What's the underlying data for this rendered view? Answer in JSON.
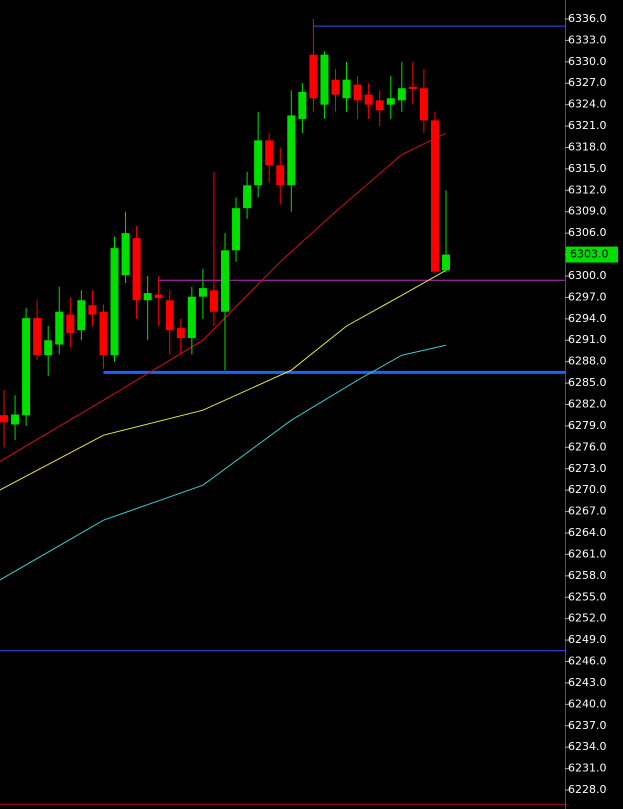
{
  "chart_data": {
    "type": "candlestick",
    "ylim": [
      6225.34,
      6338.66
    ],
    "yticks": [
      {
        "value": 6228,
        "label": "6228.0"
      },
      {
        "value": 6231,
        "label": "6231.0"
      },
      {
        "value": 6234,
        "label": "6234.0"
      },
      {
        "value": 6237,
        "label": "6237.0"
      },
      {
        "value": 6240,
        "label": "6240.0"
      },
      {
        "value": 6243,
        "label": "6243.0"
      },
      {
        "value": 6246,
        "label": "6246.0"
      },
      {
        "value": 6249,
        "label": "6249.0"
      },
      {
        "value": 6252,
        "label": "6252.0"
      },
      {
        "value": 6255,
        "label": "6255.0"
      },
      {
        "value": 6258,
        "label": "6258.0"
      },
      {
        "value": 6261,
        "label": "6261.0"
      },
      {
        "value": 6264,
        "label": "6264.0"
      },
      {
        "value": 6267,
        "label": "6267.0"
      },
      {
        "value": 6270,
        "label": "6270.0"
      },
      {
        "value": 6273,
        "label": "6273.0"
      },
      {
        "value": 6276,
        "label": "6276.0"
      },
      {
        "value": 6279,
        "label": "6279.0"
      },
      {
        "value": 6282,
        "label": "6282.0"
      },
      {
        "value": 6285,
        "label": "6285.0"
      },
      {
        "value": 6288,
        "label": "6288.0"
      },
      {
        "value": 6291,
        "label": "6291.0"
      },
      {
        "value": 6294,
        "label": "6294.0"
      },
      {
        "value": 6297,
        "label": "6297.0"
      },
      {
        "value": 6300,
        "label": "6300.0"
      },
      {
        "value": 6303,
        "label": "6303.0"
      },
      {
        "value": 6306,
        "label": "6306.0"
      },
      {
        "value": 6309,
        "label": "6309.0"
      },
      {
        "value": 6312,
        "label": "6312.0"
      },
      {
        "value": 6315,
        "label": "6315.0"
      },
      {
        "value": 6318,
        "label": "6318.0"
      },
      {
        "value": 6321,
        "label": "6321.0"
      },
      {
        "value": 6324,
        "label": "6324.0"
      },
      {
        "value": 6327,
        "label": "6327.0"
      },
      {
        "value": 6330,
        "label": "6330.0"
      },
      {
        "value": 6333,
        "label": "6333.0"
      },
      {
        "value": 6336,
        "label": "6336.0"
      }
    ],
    "up_color": "#00e000",
    "down_color": "#ff0000",
    "open": [
      6280.5,
      6279.2,
      6280.5,
      6294.1,
      6288.9,
      6290.4,
      6294.6,
      6292.4,
      6295.9,
      6295,
      6288.9,
      6300.1,
      6305.3,
      6296.6,
      6297.4,
      6296.6,
      6292.7,
      6291.3,
      6297.1,
      6298,
      6295,
      6303.6,
      6309.5,
      6312.7,
      6319,
      6315.5,
      6312.7,
      6322,
      6331,
      6324,
      6327.5,
      6324.9,
      6326.8,
      6325.4,
      6324.6,
      6324,
      6324.6,
      6326.5,
      6326.3,
      6321.8,
      6300.8
    ],
    "high": [
      6284,
      6283.3,
      6295.5,
      6296.6,
      6293,
      6298.5,
      6297,
      6298,
      6298,
      6296,
      6305.5,
      6309,
      6307,
      6300,
      6300,
      6298,
      6294,
      6298.5,
      6301,
      6314.6,
      6306,
      6311,
      6314.6,
      6323,
      6320,
      6318,
      6326,
      6327,
      6336,
      6331.5,
      6329,
      6330,
      6328,
      6327,
      6326,
      6328,
      6330,
      6330,
      6329,
      6323,
      6312
    ],
    "low": [
      6276,
      6277,
      6279,
      6288.2,
      6286,
      6289,
      6290,
      6291,
      6293,
      6287,
      6288,
      6299,
      6294,
      6291,
      6293,
      6289,
      6289,
      6289,
      6294,
      6293,
      6286.8,
      6302,
      6308,
      6311,
      6313,
      6310,
      6309,
      6320,
      6323,
      6322,
      6323,
      6323,
      6322,
      6322,
      6321,
      6322,
      6323,
      6324,
      6320,
      6300.3,
      6300.5
    ],
    "close": [
      6279.5,
      6280.6,
      6294.1,
      6288.9,
      6291,
      6295,
      6292,
      6296.6,
      6294.6,
      6288.9,
      6303.9,
      6306,
      6296.6,
      6297.6,
      6296.9,
      6292.4,
      6291.3,
      6297.1,
      6298.3,
      6295,
      6303.6,
      6309.5,
      6312.7,
      6319,
      6315.5,
      6312.7,
      6322.5,
      6325.8,
      6324.9,
      6331,
      6325.4,
      6327.5,
      6324.6,
      6324,
      6323.2,
      6324.9,
      6326.3,
      6326.2,
      6321.8,
      6300.6,
      6303
    ],
    "series": [
      {
        "name": "ma-red",
        "color": "#d01010",
        "x": [
          -0.4,
          9,
          18,
          25,
          30,
          36,
          40
        ],
        "values": [
          6274,
          6282.6,
          6291,
          6302,
          6309,
          6317,
          6320
        ]
      },
      {
        "name": "ma-yellow",
        "color": "#e8e840",
        "x": [
          -0.4,
          9,
          18,
          26,
          31,
          36,
          40
        ],
        "values": [
          6270,
          6277.7,
          6281.2,
          6286.8,
          6293,
          6297.3,
          6300.8
        ]
      },
      {
        "name": "ma-cyan",
        "color": "#40c8c8",
        "x": [
          -0.4,
          9,
          18,
          26,
          32,
          36,
          40
        ],
        "values": [
          6257.4,
          6265.8,
          6270.7,
          6279.8,
          6285.4,
          6288.9,
          6290.3
        ]
      }
    ],
    "levels": [
      {
        "value": 6335,
        "color": "#3050ff",
        "start": 28,
        "width": 1
      },
      {
        "value": 6299.4,
        "color": "#c030c0",
        "start": 14,
        "width": 1
      },
      {
        "value": 6286.5,
        "color": "#2060ff",
        "start": 9,
        "width": 3
      },
      {
        "value": 6247.5,
        "color": "#3050ff",
        "start": -0.4,
        "width": 1
      },
      {
        "value": 6226,
        "color": "#c01010",
        "start": -0.4,
        "width": 1
      }
    ],
    "last_price": {
      "value": 6303,
      "label": "6303.0"
    }
  }
}
